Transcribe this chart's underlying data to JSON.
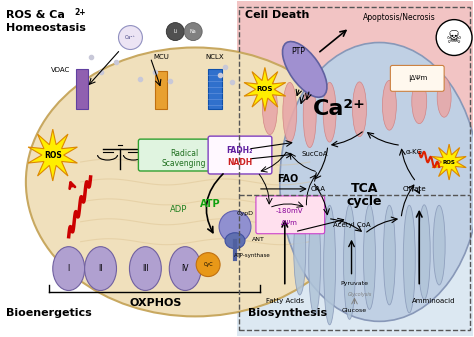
{
  "bg_color": "#ffffff",
  "left_bg": "#ffffff",
  "top_right_bg": "#f0c0c0",
  "bottom_right_bg": "#dce8f0",
  "mito_left_fill": "#f0e0bc",
  "mito_left_edge": "#c8a860",
  "mito_right_fill": "#c0d0e4",
  "mito_right_edge": "#8898b8",
  "cristae_color": "#a0b4cc",
  "pink_cristae": "#e8a8a8",
  "section_labels": {
    "top_left": [
      "ROS & Ca",
      "2+",
      "Homeostasis"
    ],
    "bottom_left": "Bioenergetics",
    "top_right": "Cell Death",
    "bottom_right": "Biosynthesis"
  }
}
